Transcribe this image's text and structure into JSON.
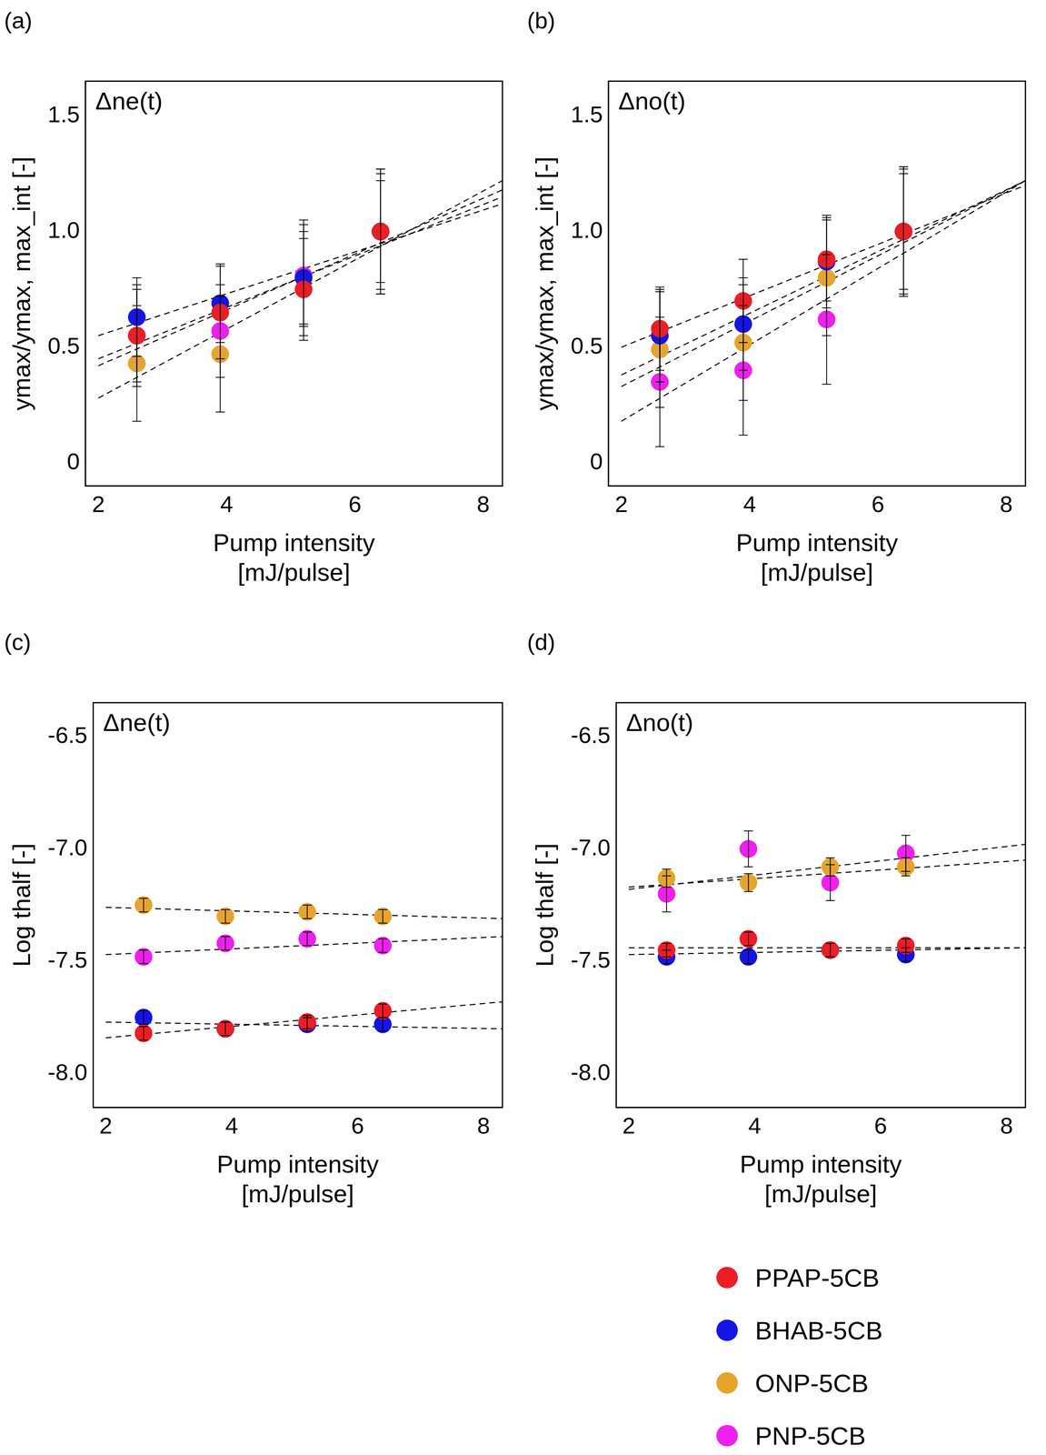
{
  "chart_data": [
    {
      "type": "scatter",
      "panel_label": "(a)",
      "annotation": "Δne(t)",
      "x_label": [
        "Pump intensity",
        "[mJ/pulse]"
      ],
      "y_label": "ymax/ymax, max_int [-]",
      "xlim": [
        1.8,
        8.3
      ],
      "xticks": [
        2,
        4,
        6,
        8
      ],
      "ylim": [
        -0.1,
        1.65
      ],
      "yticks": [
        0,
        0.5,
        {
          "value": 1,
          "label": "1.0"
        },
        1.5
      ],
      "grid": false,
      "x": [
        2.6,
        3.9,
        5.2,
        6.4
      ],
      "series": [
        {
          "name": "PPAP-5CB",
          "color": "#ee1c24",
          "marker": "circle",
          "line_style": "dashed",
          "values": [
            0.55,
            0.65,
            0.75,
            1.0
          ],
          "errors": [
            0.22,
            0.2,
            0.22,
            0.25
          ],
          "fit": {
            "x": [
              2,
              8.3
            ],
            "y": [
              0.42,
              1.18
            ]
          }
        },
        {
          "name": "BHAB-5CB",
          "color": "#1414e6",
          "marker": "circle",
          "line_style": "dashed",
          "values": [
            0.63,
            0.69,
            0.8,
            1.0
          ],
          "errors": [
            0.17,
            0.17,
            0.2,
            0.27
          ],
          "fit": {
            "x": [
              2,
              8.3
            ],
            "y": [
              0.55,
              1.12
            ]
          }
        },
        {
          "name": "ONP-5CB",
          "color": "#e6a52a",
          "marker": "circle",
          "line_style": "dashed",
          "values": [
            0.43,
            0.47,
            0.8,
            1.0
          ],
          "errors": [
            0.25,
            0.25,
            0.25,
            0.27
          ],
          "fit": {
            "x": [
              2,
              8.3
            ],
            "y": [
              0.28,
              1.22
            ]
          }
        },
        {
          "name": "PNP-5CB",
          "color": "#f01ef0",
          "marker": "circle",
          "line_style": "dashed",
          "values": [
            0.55,
            0.57,
            0.81,
            1.0
          ],
          "errors": [
            0.2,
            0.2,
            0.22,
            0.22
          ],
          "fit": {
            "x": [
              2,
              8.3
            ],
            "y": [
              0.45,
              1.15
            ]
          }
        }
      ]
    },
    {
      "type": "scatter",
      "panel_label": "(b)",
      "annotation": "Δno(t)",
      "x_label": [
        "Pump intensity",
        "[mJ/pulse]"
      ],
      "y_label": "ymax/ymax, max_int [-]",
      "xlim": [
        1.8,
        8.3
      ],
      "xticks": [
        2,
        4,
        6,
        8
      ],
      "ylim": [
        -0.1,
        1.65
      ],
      "yticks": [
        0,
        0.5,
        {
          "value": 1,
          "label": "1.0"
        },
        1.5
      ],
      "grid": false,
      "x": [
        2.6,
        3.9,
        5.2,
        6.4
      ],
      "series": [
        {
          "name": "PPAP-5CB",
          "color": "#ee1c24",
          "marker": "circle",
          "line_style": "dashed",
          "values": [
            0.58,
            0.7,
            0.88,
            1.0
          ],
          "errors": [
            0.18,
            0.18,
            0.18,
            0.28
          ],
          "fit": {
            "x": [
              2,
              8.3
            ],
            "y": [
              0.5,
              1.2
            ]
          }
        },
        {
          "name": "BHAB-5CB",
          "color": "#1414e6",
          "marker": "circle",
          "line_style": "dashed",
          "values": [
            0.55,
            0.6,
            0.87,
            1.0
          ],
          "errors": [
            0.2,
            0.2,
            0.2,
            0.27
          ],
          "fit": {
            "x": [
              2,
              8.3
            ],
            "y": [
              0.38,
              1.22
            ]
          }
        },
        {
          "name": "ONP-5CB",
          "color": "#e6a52a",
          "marker": "circle",
          "line_style": "dashed",
          "values": [
            0.49,
            0.52,
            0.8,
            1.0
          ],
          "errors": [
            0.25,
            0.25,
            0.25,
            0.28
          ],
          "fit": {
            "x": [
              2,
              8.3
            ],
            "y": [
              0.33,
              1.22
            ]
          }
        },
        {
          "name": "PNP-5CB",
          "color": "#f01ef0",
          "marker": "circle",
          "line_style": "dashed",
          "values": [
            0.35,
            0.4,
            0.62,
            1.0
          ],
          "errors": [
            0.28,
            0.28,
            0.28,
            0.25
          ],
          "fit": {
            "x": [
              2,
              8.3
            ],
            "y": [
              0.18,
              1.22
            ]
          }
        }
      ]
    },
    {
      "type": "scatter",
      "panel_label": "(c)",
      "annotation": "Δne(t)",
      "x_label": [
        "Pump intensity",
        "[mJ/pulse]"
      ],
      "y_label": "Log thalf [-]",
      "xlim": [
        1.8,
        8.3
      ],
      "xticks": [
        2,
        4,
        6,
        8
      ],
      "ylim": [
        -8.15,
        -6.35
      ],
      "yticks": [
        {
          "value": -8,
          "label": "-8.0"
        },
        -7.5,
        {
          "value": -7,
          "label": "-7.0"
        },
        -6.5
      ],
      "grid": false,
      "x": [
        2.6,
        3.9,
        5.2,
        6.4
      ],
      "series": [
        {
          "name": "PPAP-5CB",
          "color": "#ee1c24",
          "marker": "circle",
          "line_style": "dashed",
          "values": [
            -7.82,
            -7.8,
            -7.77,
            -7.72
          ],
          "errors": [
            0.03,
            0.03,
            0.03,
            0.03
          ],
          "fit": {
            "x": [
              2,
              8.3
            ],
            "y": [
              -7.84,
              -7.68
            ]
          }
        },
        {
          "name": "BHAB-5CB",
          "color": "#1414e6",
          "marker": "circle",
          "line_style": "dashed",
          "values": [
            -7.75,
            -7.8,
            -7.78,
            -7.78
          ],
          "errors": [
            0.03,
            0.03,
            0.03,
            0.03
          ],
          "fit": {
            "x": [
              2,
              8.3
            ],
            "y": [
              -7.77,
              -7.8
            ]
          }
        },
        {
          "name": "ONP-5CB",
          "color": "#e6a52a",
          "marker": "circle",
          "line_style": "dashed",
          "values": [
            -7.25,
            -7.3,
            -7.28,
            -7.3
          ],
          "errors": [
            0.03,
            0.03,
            0.03,
            0.03
          ],
          "fit": {
            "x": [
              2,
              8.3
            ],
            "y": [
              -7.26,
              -7.31
            ]
          }
        },
        {
          "name": "PNP-5CB",
          "color": "#f01ef0",
          "marker": "circle",
          "line_style": "dashed",
          "values": [
            -7.48,
            -7.42,
            -7.4,
            -7.43
          ],
          "errors": [
            0.03,
            0.03,
            0.03,
            0.03
          ],
          "fit": {
            "x": [
              2,
              8.3
            ],
            "y": [
              -7.47,
              -7.39
            ]
          }
        }
      ]
    },
    {
      "type": "scatter",
      "panel_label": "(d)",
      "annotation": "Δno(t)",
      "x_label": [
        "Pump intensity",
        "[mJ/pulse]"
      ],
      "y_label": "Log thalf [-]",
      "xlim": [
        1.8,
        8.3
      ],
      "xticks": [
        2,
        4,
        6,
        8
      ],
      "ylim": [
        -8.15,
        -6.35
      ],
      "yticks": [
        {
          "value": -8,
          "label": "-8.0"
        },
        -7.5,
        {
          "value": -7,
          "label": "-7.0"
        },
        -6.5
      ],
      "grid": false,
      "legend": "bottom",
      "x": [
        2.6,
        3.9,
        5.2,
        6.4
      ],
      "series": [
        {
          "name": "PPAP-5CB",
          "color": "#ee1c24",
          "marker": "circle",
          "line_style": "dashed",
          "values": [
            -7.45,
            -7.4,
            -7.45,
            -7.43
          ],
          "errors": [
            0.03,
            0.03,
            0.03,
            0.03
          ],
          "fit": {
            "x": [
              2,
              8.3
            ],
            "y": [
              -7.44,
              -7.44
            ]
          }
        },
        {
          "name": "BHAB-5CB",
          "color": "#1414e6",
          "marker": "circle",
          "line_style": "dashed",
          "values": [
            -7.48,
            -7.48,
            -7.45,
            -7.47
          ],
          "errors": [
            0.03,
            0.03,
            0.03,
            0.03
          ],
          "fit": {
            "x": [
              2,
              8.3
            ],
            "y": [
              -7.47,
              -7.44
            ]
          }
        },
        {
          "name": "ONP-5CB",
          "color": "#e6a52a",
          "marker": "circle",
          "line_style": "dashed",
          "values": [
            -7.13,
            -7.15,
            -7.08,
            -7.08
          ],
          "errors": [
            0.04,
            0.04,
            0.04,
            0.04
          ],
          "fit": {
            "x": [
              2,
              8.3
            ],
            "y": [
              -7.17,
              -7.05
            ]
          }
        },
        {
          "name": "PNP-5CB",
          "color": "#f01ef0",
          "marker": "circle",
          "line_style": "dashed",
          "values": [
            -7.2,
            -7.0,
            -7.15,
            -7.02
          ],
          "errors": [
            0.08,
            0.08,
            0.08,
            0.08
          ],
          "fit": {
            "x": [
              2,
              8.3
            ],
            "y": [
              -7.18,
              -6.98
            ]
          }
        }
      ]
    }
  ]
}
